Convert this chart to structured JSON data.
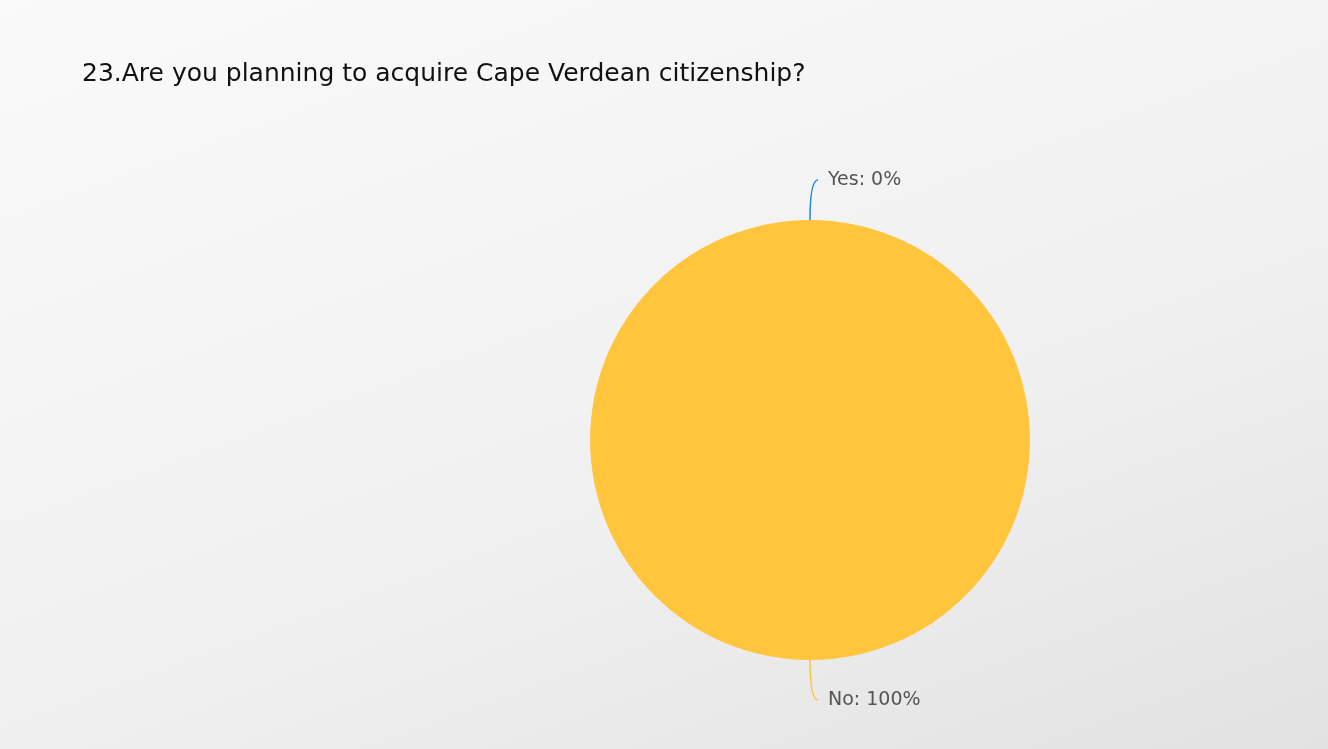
{
  "chart_data": {
    "type": "pie",
    "title": "23.Are you planning to acquire Cape Verdean citizenship?",
    "categories": [
      "Yes",
      "No"
    ],
    "values": [
      0,
      100
    ],
    "colors": [
      "#1e88e5",
      "#ffc53d"
    ],
    "value_labels": [
      ": 0%",
      ": 100%"
    ],
    "legend": false
  }
}
